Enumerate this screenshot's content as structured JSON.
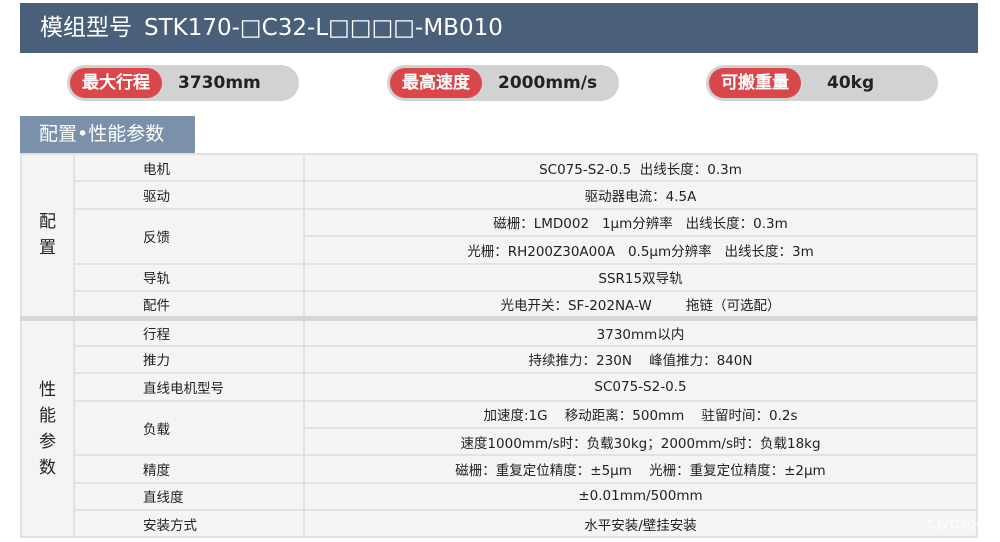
{
  "header": {
    "prefix": "模组型号",
    "model": "STK170-□C32-L□□□□-MB010",
    "bg": "#4a5f79"
  },
  "pills": [
    {
      "label": "最大行程",
      "value": "3730mm"
    },
    {
      "label": "最高速度",
      "value": "2000mm/s"
    },
    {
      "label": "可搬重量",
      "value": "40kg"
    }
  ],
  "accent": "#d9474a",
  "section_tab": "配置•性能参数",
  "config": {
    "group": "配\n置",
    "rows": [
      {
        "label": "电机",
        "values": [
          "SC075-S2-0.5  出线长度：0.3m"
        ]
      },
      {
        "label": "驱动",
        "values": [
          "驱动器电流：4.5A"
        ]
      },
      {
        "label": "反馈",
        "values": [
          "磁栅：LMD002   1μm分辨率   出线长度：0.3m",
          "光栅：RH200Z30A00A   0.5μm分辨率   出线长度：3m"
        ]
      },
      {
        "label": "导轨",
        "values": [
          "SSR15双导轨"
        ]
      },
      {
        "label": "配件",
        "values": [
          "光电开关：SF-202NA-W        拖链（可选配）"
        ]
      }
    ]
  },
  "performance": {
    "group": "性\n能\n参\n数",
    "rows": [
      {
        "label": "行程",
        "values": [
          "3730mm以内"
        ]
      },
      {
        "label": "推力",
        "values": [
          "持续推力：230N    峰值推力：840N"
        ]
      },
      {
        "label": "直线电机型号",
        "values": [
          "SC075-S2-0.5"
        ]
      },
      {
        "label": "负载",
        "values": [
          "加速度:1G    移动距离：500mm    驻留时间：0.2s",
          "速度1000mm/s时：负载30kg；2000mm/s时：负载18kg"
        ]
      },
      {
        "label": "精度",
        "values": [
          "磁栅：重复定位精度：±5μm    光栅：重复定位精度：±2μm"
        ]
      },
      {
        "label": "直线度",
        "values": [
          "±0.01mm/500mm"
        ]
      },
      {
        "label": "安装方式",
        "values": [
          "水平安装/壁挂安装"
        ]
      }
    ]
  },
  "watermark": "t.jytfsgc.c"
}
